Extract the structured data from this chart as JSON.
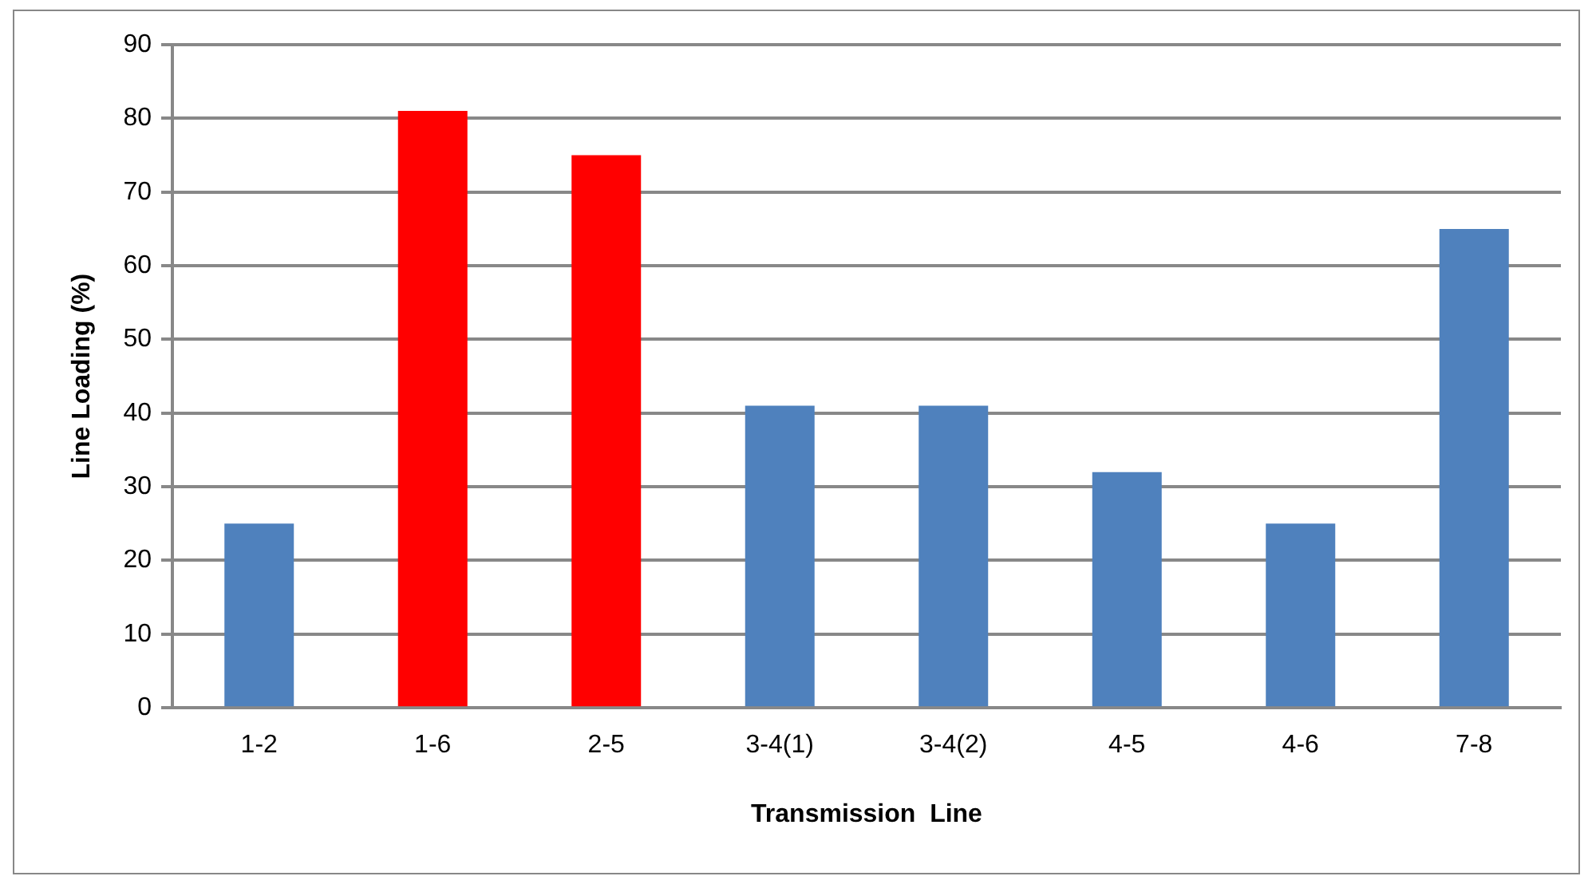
{
  "chart_data": {
    "type": "bar",
    "xlabel": "Transmission  Line",
    "ylabel": "Line Loading (%)",
    "categories": [
      "1-2",
      "1-6",
      "2-5",
      "3-4(1)",
      "3-4(2)",
      "4-5",
      "4-6",
      "7-8"
    ],
    "values": [
      25,
      81,
      75,
      41,
      41,
      32,
      25,
      65
    ],
    "colors": [
      "#4f81bd",
      "#ff0000",
      "#ff0000",
      "#4f81bd",
      "#4f81bd",
      "#4f81bd",
      "#4f81bd",
      "#4f81bd"
    ],
    "ylim": [
      0,
      90
    ],
    "yticks": [
      0,
      10,
      20,
      30,
      40,
      50,
      60,
      70,
      80,
      90
    ],
    "grid": "y",
    "legend": false
  }
}
